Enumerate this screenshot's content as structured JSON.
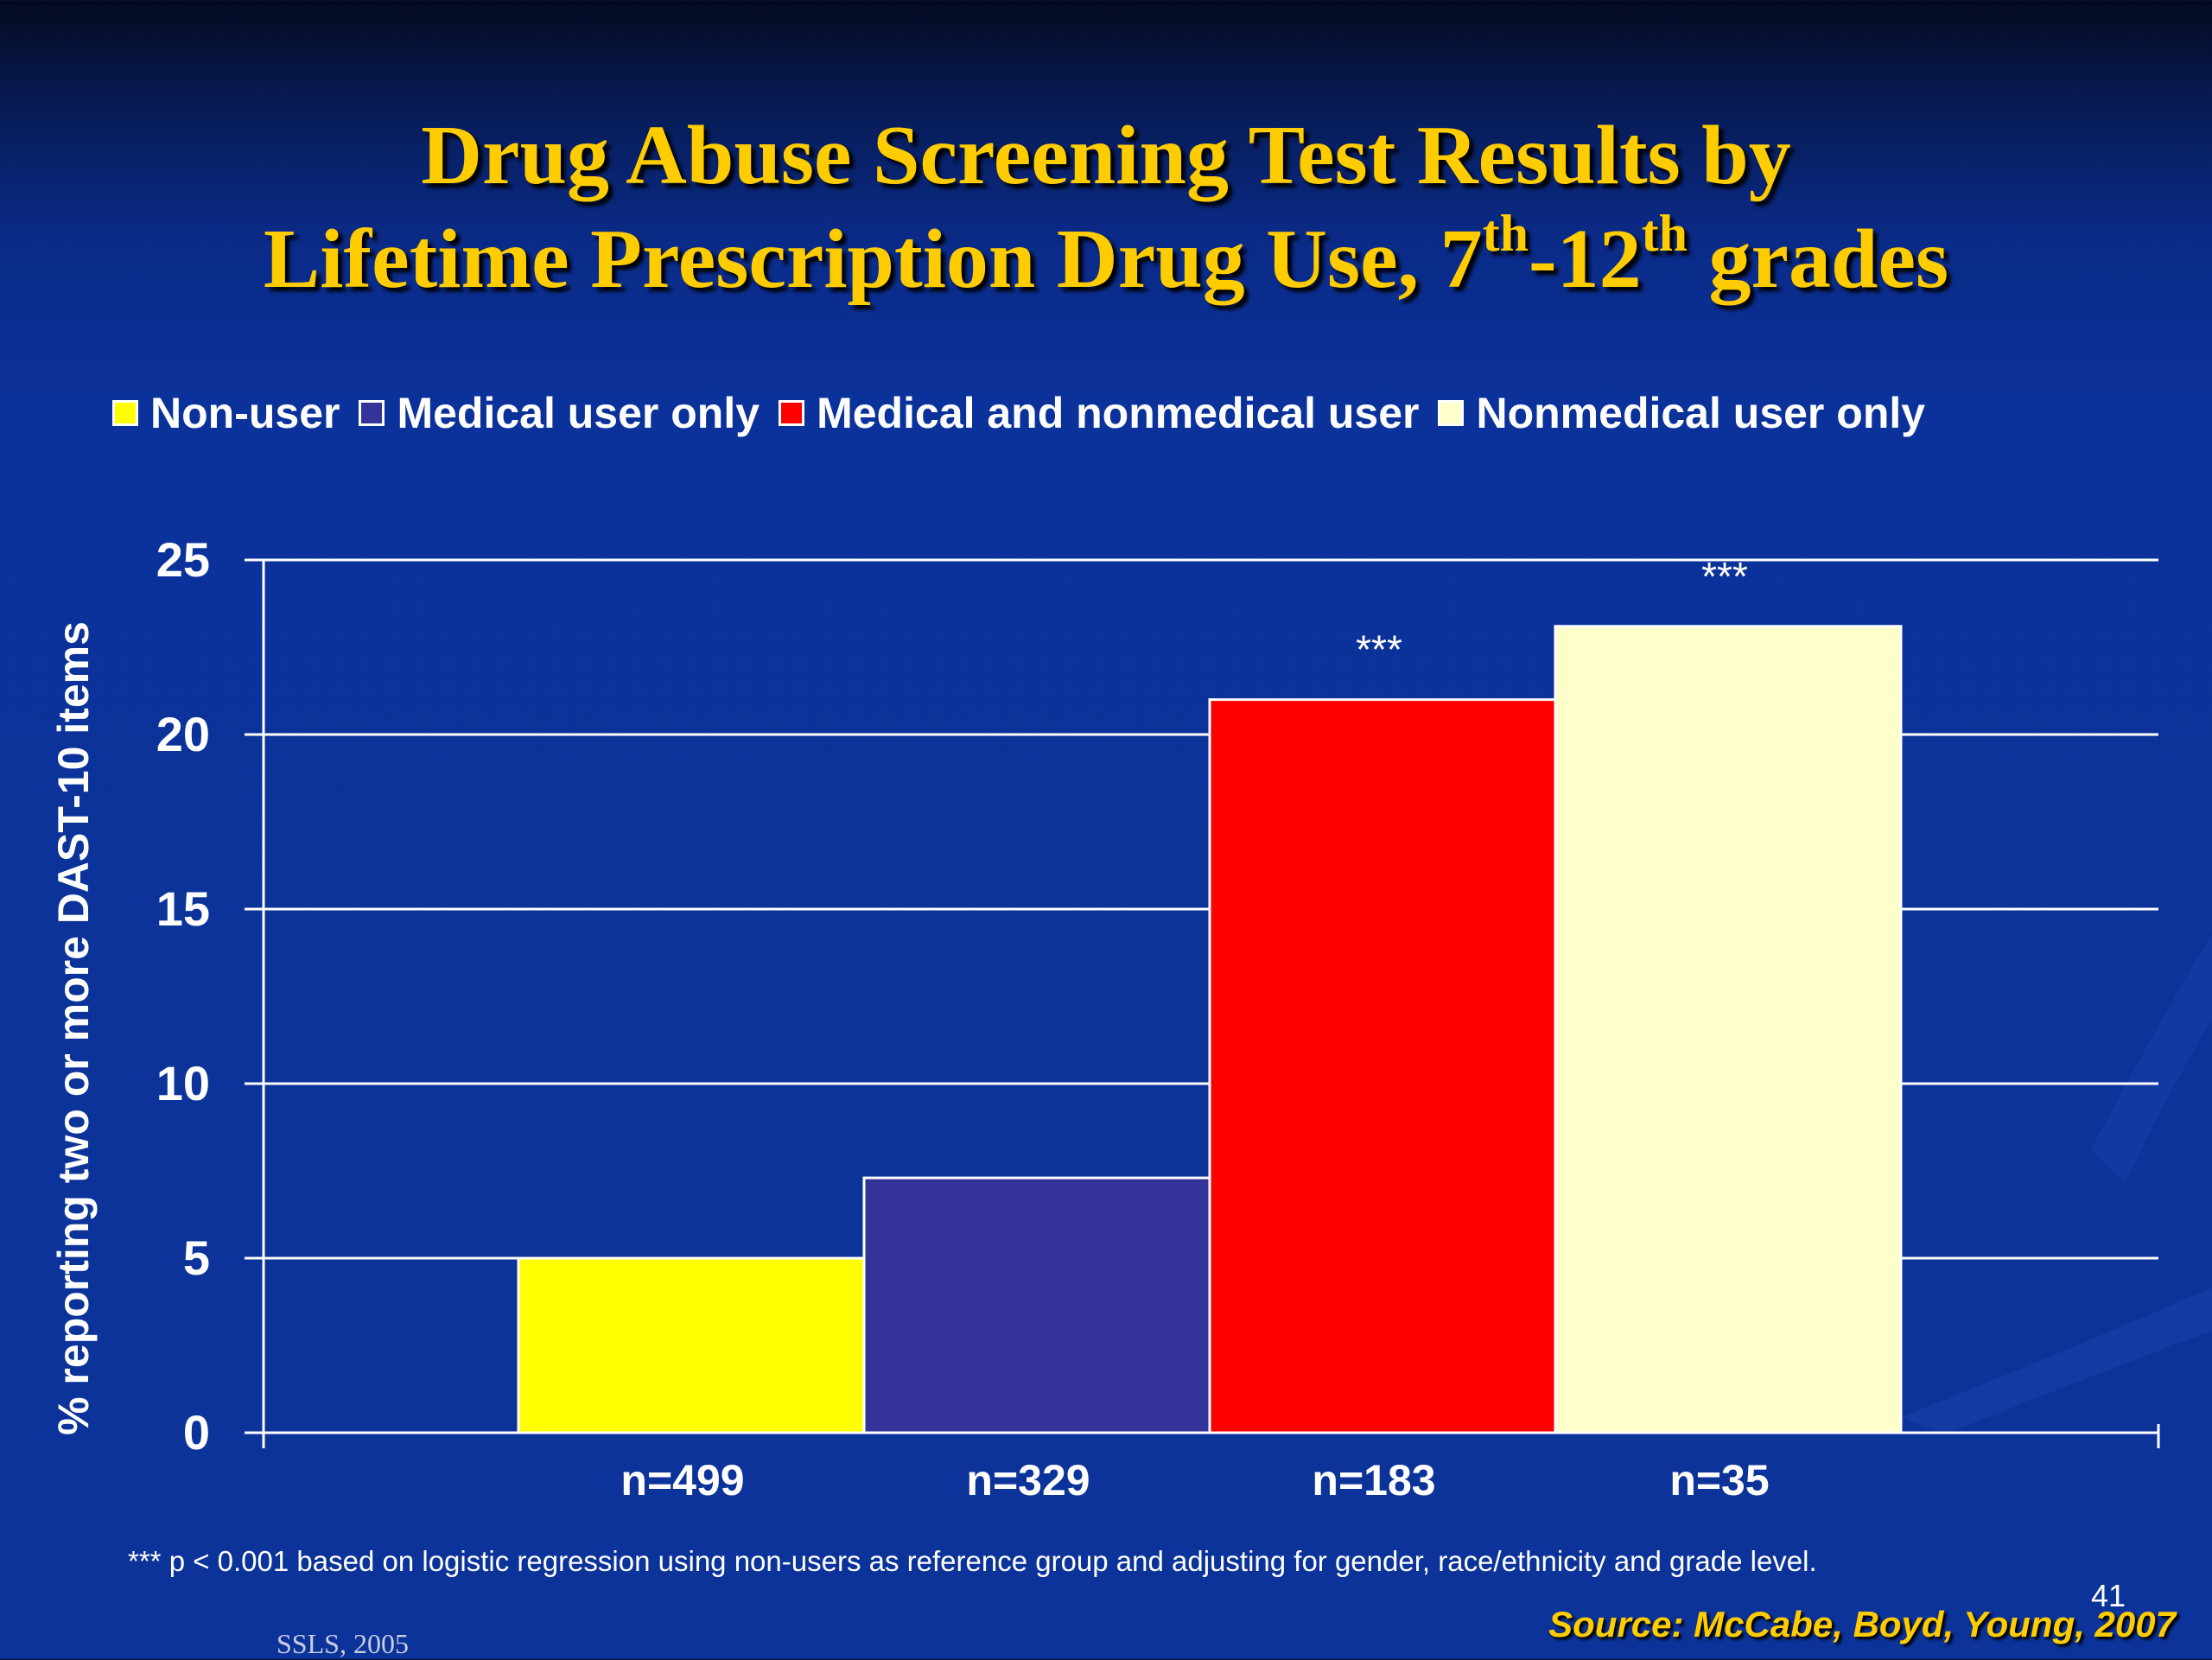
{
  "title": {
    "line1": "Drug Abuse Screening Test Results by",
    "line2_a": "Lifetime Prescription Drug Use, 7",
    "line2_sup1": "th",
    "line2_b": "-12",
    "line2_sup2": "th",
    "line2_c": " grades"
  },
  "legend": [
    {
      "label": "Non-user",
      "color": "#ffff00"
    },
    {
      "label": "Medical user only",
      "color": "#333399"
    },
    {
      "label": "Medical and nonmedical user",
      "color": "#ff0000"
    },
    {
      "label": "Nonmedical user only",
      "color": "#ffffcc"
    }
  ],
  "chart_data": {
    "type": "bar",
    "ylabel": "% reporting two or more DAST-10 items",
    "ylim": [
      0,
      25
    ],
    "yticks": [
      "0",
      "5",
      "10",
      "15",
      "20",
      "25"
    ],
    "grid": true,
    "legend_position": "top",
    "series": [
      {
        "name": "Non-user",
        "value": 5.0,
        "color": "#ffff00",
        "n_label": "n=499",
        "annotation": ""
      },
      {
        "name": "Medical user only",
        "value": 7.3,
        "color": "#333399",
        "n_label": "n=329",
        "annotation": ""
      },
      {
        "name": "Medical and nonmedical user",
        "value": 21.0,
        "color": "#ff0000",
        "n_label": "n=183",
        "annotation": "***"
      },
      {
        "name": "Nonmedical user only",
        "value": 23.1,
        "color": "#ffffcc",
        "n_label": "n=35",
        "annotation": "***"
      }
    ]
  },
  "footnote": "*** p < 0.001 based on logistic regression using non-users as reference group and adjusting for gender, race/ethnicity and grade level.",
  "page_number": "41",
  "source": "Source: McCabe, Boyd, Young, 2007",
  "bottom_label": "SSLS, 2005"
}
